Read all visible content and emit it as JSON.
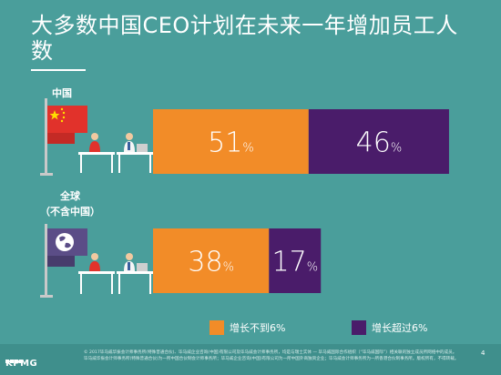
{
  "title": "大多数中国CEO计划在未来一年增加员工人数",
  "colors": {
    "background": "#4a9e9b",
    "orange": "#f28c28",
    "purple": "#4a1c6a",
    "china_flag": "#e1322b"
  },
  "chart_data": {
    "type": "bar",
    "stacked": true,
    "orientation": "horizontal",
    "categories": [
      "中国",
      "全球（不含中国）"
    ],
    "series": [
      {
        "name": "增长不到6%",
        "values": [
          51,
          38
        ],
        "labels": [
          "51%",
          "38%"
        ],
        "color": "#f28c28"
      },
      {
        "name": "增长超过6%",
        "values": [
          46,
          17
        ],
        "labels": [
          "46%",
          "17%"
        ],
        "color": "#4a1c6a"
      }
    ],
    "legend_position": "bottom"
  },
  "footer": {
    "logo_text": "KPMG",
    "legal_line1": "© 2017毕马威华振会计师事务所(特殊普通合伙)、毕马威企业咨询(中国)有限公司及毕马威会计师事务所，均是与瑞士实体 — 毕马威国际合作组织（“毕马威国际”）相关联的独立成员所网络中的成员。",
    "legal_line2": "毕马威华振会计师事务所(特殊普通合伙)为一所中国合伙制会计师事务所；毕马威企业咨询(中国)有限公司为一所中国外商独资企业；毕马威会计师事务所为一所香港合伙制事务所。版权所有，不得转载。",
    "page_number": "4"
  },
  "icons": {
    "china": "china-flag-icon",
    "global": "globe-flag-icon",
    "people": "office-workers-icon"
  }
}
